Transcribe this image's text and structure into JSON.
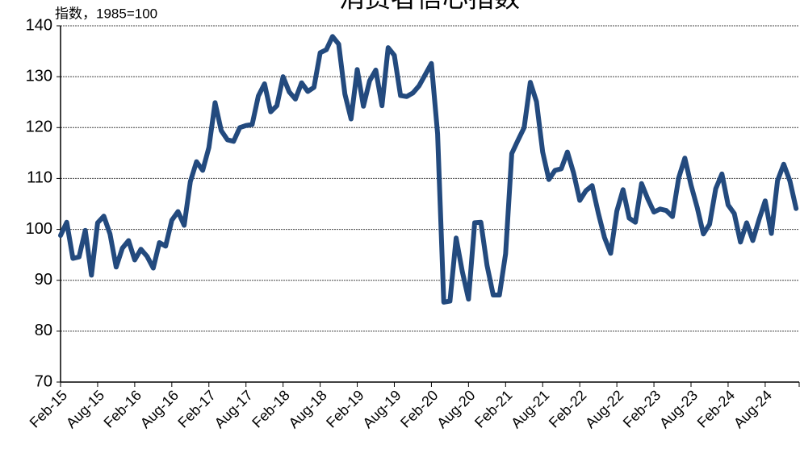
{
  "chart_data": {
    "type": "line",
    "title": "消费者信心指数",
    "y_label": "指数，1985=100",
    "categories": [
      "Feb-15",
      null,
      null,
      null,
      null,
      null,
      "Aug-15",
      null,
      null,
      null,
      null,
      null,
      "Feb-16",
      null,
      null,
      null,
      null,
      null,
      "Aug-16",
      null,
      null,
      null,
      null,
      null,
      "Feb-17",
      null,
      null,
      null,
      null,
      null,
      "Aug-17",
      null,
      null,
      null,
      null,
      null,
      "Feb-18",
      null,
      null,
      null,
      null,
      null,
      "Aug-18",
      null,
      null,
      null,
      null,
      null,
      "Feb-19",
      null,
      null,
      null,
      null,
      null,
      "Aug-19",
      null,
      null,
      null,
      null,
      null,
      "Feb-20",
      null,
      null,
      null,
      null,
      null,
      "Aug-20",
      null,
      null,
      null,
      null,
      null,
      "Feb-21",
      null,
      null,
      null,
      null,
      null,
      "Aug-21",
      null,
      null,
      null,
      null,
      null,
      "Feb-22",
      null,
      null,
      null,
      null,
      null,
      "Aug-22",
      null,
      null,
      null,
      null,
      null,
      "Feb-23",
      null,
      null,
      null,
      null,
      null,
      "Aug-23",
      null,
      null,
      null,
      null,
      null,
      "Feb-24",
      null,
      null,
      null,
      null,
      null,
      "Aug-24",
      null,
      null,
      null,
      null,
      null
    ],
    "series": [
      {
        "color": "#234a7e",
        "values": [
          98.8,
          101.4,
          94.3,
          94.6,
          99.8,
          91.0,
          101.3,
          102.6,
          99.1,
          92.6,
          96.3,
          97.8,
          94.0,
          96.1,
          94.7,
          92.4,
          97.4,
          96.7,
          101.8,
          103.5,
          100.8,
          109.4,
          113.3,
          111.6,
          116.1,
          124.9,
          119.4,
          117.6,
          117.3,
          120.0,
          120.4,
          120.6,
          126.2,
          128.6,
          123.1,
          124.3,
          130.0,
          127.0,
          125.6,
          128.8,
          127.1,
          127.9,
          134.7,
          135.3,
          137.9,
          136.4,
          126.6,
          121.7,
          131.4,
          124.2,
          129.2,
          131.3,
          124.3,
          135.7,
          134.2,
          126.3,
          126.1,
          126.8,
          128.2,
          130.4,
          132.6,
          118.8,
          85.7,
          85.9,
          98.3,
          91.7,
          86.3,
          101.3,
          101.4,
          92.9,
          87.1,
          87.1,
          95.2,
          114.9,
          117.5,
          120.0,
          128.9,
          125.1,
          115.2,
          109.8,
          111.6,
          111.9,
          115.2,
          111.1,
          105.7,
          107.6,
          108.6,
          103.2,
          98.4,
          95.3,
          103.6,
          107.8,
          102.2,
          101.4,
          109.0,
          106.0,
          103.4,
          104.0,
          103.7,
          102.5,
          110.1,
          114.0,
          108.7,
          104.3,
          99.1,
          101.0,
          108.0,
          110.9,
          104.8,
          103.1,
          97.5,
          101.3,
          97.8,
          101.9,
          105.6,
          99.2,
          109.6,
          112.8,
          109.5,
          104.1
        ]
      }
    ],
    "ylim": [
      70,
      140
    ],
    "yticks": [
      70,
      80,
      90,
      100,
      110,
      120,
      130,
      140
    ],
    "grid": true
  }
}
